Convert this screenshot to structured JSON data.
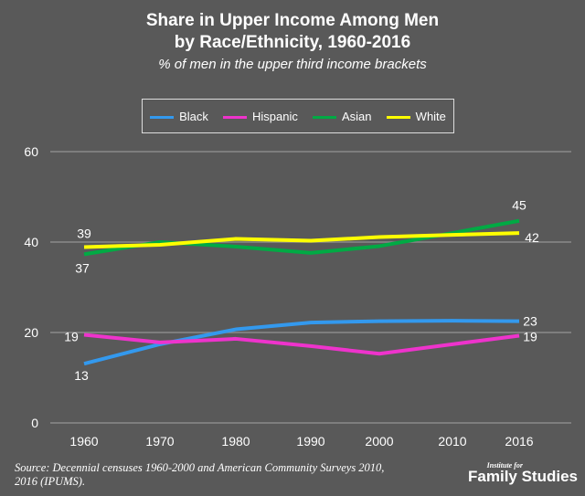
{
  "chart_data": {
    "type": "line",
    "title": "Share in Upper Income Among Men by Race/Ethnicity, 1960-2016",
    "title_lines": [
      "Share in Upper Income Among Men",
      "by Race/Ethnicity, 1960-2016"
    ],
    "subtitle": "% of men in the upper third income brackets",
    "categories": [
      "1960",
      "1970",
      "1980",
      "1990",
      "2000",
      "2010",
      "2016"
    ],
    "ylim": [
      0,
      60
    ],
    "yticks": [
      "0",
      "20",
      "40",
      "60"
    ],
    "grid": true,
    "legend_position": "top",
    "series": [
      {
        "name": "Black",
        "color": "#3399ee",
        "values": [
          13.1,
          17.4,
          20.7,
          22.2,
          22.5,
          22.6,
          22.5
        ],
        "labels": {
          "0": "13",
          "6": "23"
        }
      },
      {
        "name": "Hispanic",
        "color": "#ee33cc",
        "values": [
          19.5,
          17.8,
          18.6,
          17.0,
          15.3,
          17.4,
          19.3
        ],
        "labels": {
          "0": "19",
          "6": "19"
        }
      },
      {
        "name": "Asian",
        "color": "#00aa44",
        "values": [
          37.3,
          40.0,
          39.0,
          37.6,
          39.1,
          42.0,
          44.7
        ],
        "labels": {
          "0": "37",
          "6": "45"
        }
      },
      {
        "name": "White",
        "color": "#ffff00",
        "values": [
          38.9,
          39.4,
          40.7,
          40.3,
          41.1,
          41.6,
          42.0
        ],
        "labels": {
          "0": "39",
          "6": "42"
        }
      }
    ]
  },
  "source": "Source: Decennial censuses 1960-2000 and American Community Surveys 2010, 2016 (IPUMS).",
  "logo": {
    "small": "Institute for",
    "big": "Family Studies"
  }
}
